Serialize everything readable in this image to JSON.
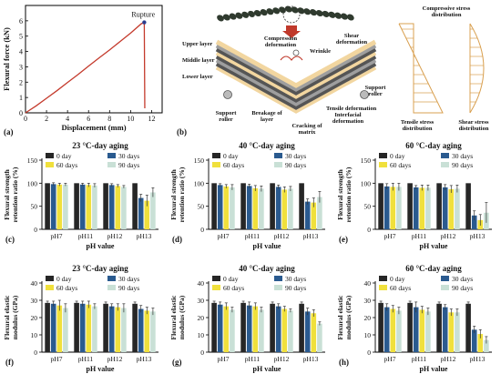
{
  "colors": {
    "c0": "#262626",
    "c30": "#2a5a8f",
    "c60": "#f0e03c",
    "c90": "#c9e0d6",
    "curve": "#c43a2c",
    "rope": "#2f3a2e",
    "beam_outer": "#f2d6a0",
    "beam_mid": "#9e9e9e",
    "stress": "#d9a050"
  },
  "panel_a": {
    "tag": "(a)",
    "xlabel": "Displacement (mm)",
    "ylabel": "Flexural force (kN)",
    "annotation": "Rupture",
    "xticks": [
      "0",
      "2",
      "4",
      "6",
      "8",
      "10",
      "12"
    ],
    "yticks": [
      "0",
      "1",
      "2",
      "3",
      "4",
      "5",
      "6"
    ],
    "chart_data": {
      "type": "line",
      "x": [
        0,
        1,
        2,
        3,
        4,
        5,
        6,
        7,
        8,
        9,
        10,
        11,
        11.3,
        11.35
      ],
      "y": [
        0,
        0.45,
        0.95,
        1.45,
        1.98,
        2.5,
        3.05,
        3.58,
        4.1,
        4.65,
        5.2,
        5.8,
        5.9,
        0.3
      ],
      "rupture": [
        11.3,
        5.9
      ],
      "xlim": [
        0,
        13
      ],
      "ylim": [
        0,
        7
      ]
    }
  },
  "panel_b": {
    "tag": "(b)",
    "labels": {
      "upper": "Upper layer",
      "middle": "Middle layer",
      "lower": "Lower layer",
      "compression": "Compression deformation",
      "wrinkle": "Wrinkle",
      "shear": "Shear deformation",
      "support_left": "Support roller",
      "breakage": "Breakage of layer",
      "cracking": "Cracking of matrix",
      "interfacial": "Interfacial deformation",
      "tensile_def": "Tensile deformation",
      "support_right": "Support roller",
      "compressive_dist": "Compressive stress distribution",
      "tensile_dist": "Tensile stress distribution",
      "shear_dist": "Shear stress distribution"
    }
  },
  "bar_common": {
    "categories": [
      "pH7",
      "pH11",
      "pH12",
      "pH13"
    ],
    "xlabel": "pH value",
    "legend": [
      "0 day",
      "30 days",
      "60 days",
      "90 days"
    ]
  },
  "bar_charts": [
    {
      "tag": "(c)",
      "title": "23 °C-day aging",
      "ylabel": "Flexural strength retention ratio (%)",
      "yticks": [
        "0",
        "50",
        "100",
        "150"
      ],
      "ylim": [
        0,
        150
      ],
      "chart_data": {
        "type": "bar",
        "series": [
          {
            "name": "0 day",
            "values": [
              100,
              100,
              100,
              100
            ]
          },
          {
            "name": "30 days",
            "values": [
              98,
              97,
              96,
              68
            ]
          },
          {
            "name": "60 days",
            "values": [
              97,
              96,
              94,
              62
            ]
          },
          {
            "name": "90 days",
            "values": [
              97,
              95,
              92,
              80
            ]
          }
        ],
        "errors": [
          [
            0,
            0,
            0,
            0
          ],
          [
            3,
            3,
            3,
            8
          ],
          [
            3,
            4,
            3,
            12
          ],
          [
            3,
            4,
            3,
            10
          ]
        ]
      }
    },
    {
      "tag": "(d)",
      "title": "40 °C-day aging",
      "ylabel": "Flexural strength retention ratio (%)",
      "yticks": [
        "0",
        "50",
        "100",
        "150"
      ],
      "ylim": [
        0,
        150
      ],
      "chart_data": {
        "type": "bar",
        "series": [
          {
            "name": "0 day",
            "values": [
              100,
              100,
              100,
              100
            ]
          },
          {
            "name": "30 days",
            "values": [
              96,
              94,
              92,
              60
            ]
          },
          {
            "name": "60 days",
            "values": [
              93,
              89,
              86,
              58
            ]
          },
          {
            "name": "90 days",
            "values": [
              91,
              88,
              88,
              70
            ]
          }
        ],
        "errors": [
          [
            0,
            0,
            0,
            0
          ],
          [
            3,
            4,
            4,
            6
          ],
          [
            4,
            6,
            6,
            10
          ],
          [
            6,
            6,
            5,
            12
          ]
        ]
      }
    },
    {
      "tag": "(e)",
      "title": "60 °C-day aging",
      "ylabel": "Flexural strength retention ratio (%)",
      "yticks": [
        "0",
        "50",
        "100",
        "150"
      ],
      "ylim": [
        0,
        150
      ],
      "chart_data": {
        "type": "bar",
        "series": [
          {
            "name": "0 day",
            "values": [
              100,
              100,
              100,
              100
            ]
          },
          {
            "name": "30 days",
            "values": [
              93,
              91,
              91,
              30
            ]
          },
          {
            "name": "60 days",
            "values": [
              92,
              90,
              87,
              20
            ]
          },
          {
            "name": "90 days",
            "values": [
              92,
              90,
              88,
              36
            ]
          }
        ],
        "errors": [
          [
            0,
            0,
            0,
            0
          ],
          [
            6,
            4,
            6,
            10
          ],
          [
            8,
            6,
            8,
            12
          ],
          [
            8,
            6,
            8,
            22
          ]
        ]
      }
    },
    {
      "tag": "(f)",
      "title": "23 °C-day aging",
      "ylabel": "Flexural elastic modulus (GPa)",
      "yticks": [
        "0",
        "10",
        "20",
        "30",
        "40"
      ],
      "ylim": [
        0,
        40
      ],
      "chart_data": {
        "type": "bar",
        "series": [
          {
            "name": "0 day",
            "values": [
              28.5,
              28.5,
              28,
              28
            ]
          },
          {
            "name": "30 days",
            "values": [
              28,
              28,
              26.5,
              25
            ]
          },
          {
            "name": "60 days",
            "values": [
              27,
              27.5,
              26,
              24
            ]
          },
          {
            "name": "90 days",
            "values": [
              25.5,
              26.5,
              25.5,
              23.5
            ]
          }
        ],
        "errors": [
          [
            1,
            1,
            1,
            1
          ],
          [
            1.5,
            1.5,
            1.5,
            2
          ],
          [
            3,
            2,
            2,
            2
          ],
          [
            2.5,
            1.5,
            2.5,
            2
          ]
        ]
      }
    },
    {
      "tag": "(g)",
      "title": "40 °C-day aging",
      "ylabel": "Flexural elastic modulus (GPa)",
      "yticks": [
        "0",
        "10",
        "20",
        "30",
        "40"
      ],
      "ylim": [
        0,
        40
      ],
      "chart_data": {
        "type": "bar",
        "series": [
          {
            "name": "0 day",
            "values": [
              28.5,
              28.5,
              28,
              28
            ]
          },
          {
            "name": "30 days",
            "values": [
              27.5,
              27,
              26.5,
              23.5
            ]
          },
          {
            "name": "60 days",
            "values": [
              26.5,
              26.5,
              25,
              22.5
            ]
          },
          {
            "name": "90 days",
            "values": [
              24.5,
              24.5,
              24,
              16.5
            ]
          }
        ],
        "errors": [
          [
            1,
            1,
            1,
            1
          ],
          [
            1.5,
            2,
            1.5,
            2
          ],
          [
            2,
            2,
            1.5,
            2
          ],
          [
            1.5,
            1.5,
            1,
            1
          ]
        ]
      }
    },
    {
      "tag": "(h)",
      "title": "60 °C-day aging",
      "ylabel": "Flexural elastic modulus (GPa)",
      "yticks": [
        "0",
        "10",
        "20",
        "30",
        "40"
      ],
      "ylim": [
        0,
        40
      ],
      "chart_data": {
        "type": "bar",
        "series": [
          {
            "name": "0 day",
            "values": [
              28.5,
              28.5,
              28,
              28
            ]
          },
          {
            "name": "30 days",
            "values": [
              26,
              26,
              26,
              13
            ]
          },
          {
            "name": "60 days",
            "values": [
              25,
              24.5,
              23,
              10.5
            ]
          },
          {
            "name": "90 days",
            "values": [
              24,
              23.5,
              23,
              7
            ]
          }
        ],
        "errors": [
          [
            1,
            1,
            1,
            1
          ],
          [
            2,
            3,
            1.5,
            2
          ],
          [
            2,
            2,
            2,
            2.5
          ],
          [
            2,
            2,
            2,
            2
          ]
        ]
      }
    }
  ]
}
